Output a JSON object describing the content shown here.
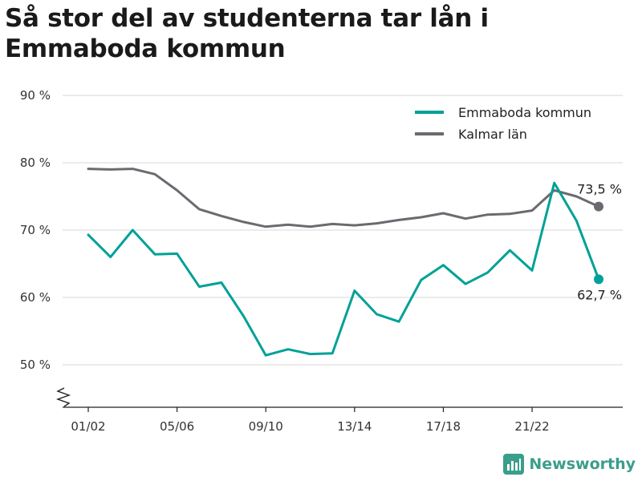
{
  "title": "Så stor del av studenterna tar lån i Emmaboda kommun",
  "brand": {
    "name": "Newsworthy"
  },
  "colors": {
    "emmaboda": "#00a197",
    "kalmar": "#6b6a70",
    "grid": "#d7d7d7",
    "brand": "#3a9e8a"
  },
  "chart_data": {
    "type": "line",
    "title": "Så stor del av studenterna tar lån i Emmaboda kommun",
    "xlabel": "",
    "ylabel": "",
    "ylim": [
      44,
      91
    ],
    "y_ticks": [
      "50 %",
      "60 %",
      "70 %",
      "80 %",
      "90 %"
    ],
    "y_tick_values": [
      50,
      60,
      70,
      80,
      90
    ],
    "axis_break": true,
    "grid": true,
    "legend_position": "top-right",
    "x": [
      "01/02",
      "02/03",
      "03/04",
      "04/05",
      "05/06",
      "06/07",
      "07/08",
      "08/09",
      "09/10",
      "10/11",
      "11/12",
      "12/13",
      "13/14",
      "14/15",
      "15/16",
      "16/17",
      "17/18",
      "18/19",
      "19/20",
      "20/21",
      "21/22",
      "22/23",
      "23/24",
      "24/25"
    ],
    "x_ticks": [
      "01/02",
      "05/06",
      "09/10",
      "13/14",
      "17/18",
      "21/22"
    ],
    "series": [
      {
        "name": "Emmaboda kommun",
        "color": "#00a197",
        "values": [
          69.3,
          66.0,
          70.0,
          66.4,
          66.5,
          61.6,
          62.2,
          57.2,
          51.4,
          52.3,
          51.6,
          51.7,
          61.0,
          57.5,
          56.4,
          62.6,
          64.8,
          62.0,
          63.7,
          67.0,
          64.0,
          77.0,
          71.4,
          62.7
        ],
        "end_label": "62,7 %"
      },
      {
        "name": "Kalmar län",
        "color": "#6b6a70",
        "values": [
          79.1,
          79.0,
          79.1,
          78.3,
          75.9,
          73.1,
          72.1,
          71.2,
          70.5,
          70.8,
          70.5,
          70.9,
          70.7,
          71.0,
          71.5,
          71.9,
          72.5,
          71.7,
          72.3,
          72.4,
          72.9,
          75.9,
          75.0,
          73.5
        ],
        "end_label": "73,5 %"
      }
    ]
  }
}
